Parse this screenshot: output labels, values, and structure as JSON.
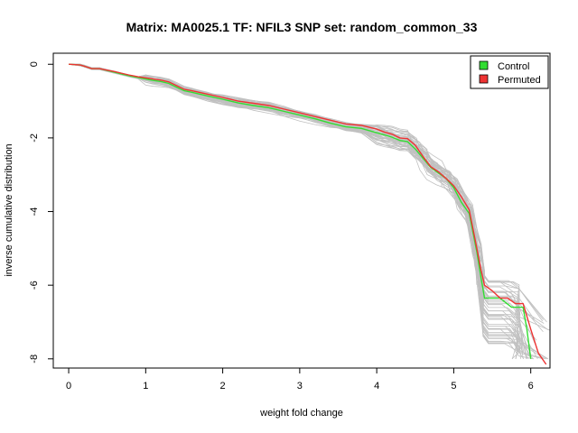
{
  "chart_data": {
    "type": "line",
    "title": "Matrix: MA0025.1 TF: NFIL3 SNP set: random_common_33",
    "xlabel": "weight fold change",
    "ylabel": "inverse cumulative distribution",
    "xlim": [
      -0.2,
      6.25
    ],
    "ylim": [
      -8.25,
      0.3
    ],
    "x_ticks": [
      0,
      1,
      2,
      3,
      4,
      5,
      6
    ],
    "y_ticks": [
      0,
      -2,
      -4,
      -6,
      -8
    ],
    "grid": false,
    "legend_position": "top-right",
    "colors": {
      "control": "#33dd33",
      "permuted": "#ee3333",
      "background": "#c0c0c0"
    },
    "legend": [
      {
        "label": "Control",
        "color": "#33dd33"
      },
      {
        "label": "Permuted",
        "color": "#ee3333"
      }
    ],
    "series": [
      {
        "name": "Control",
        "color": "#33dd33",
        "x": [
          0,
          0.15,
          0.2,
          0.3,
          0.4,
          0.5,
          0.6,
          0.7,
          0.8,
          0.9,
          1.0,
          1.1,
          1.2,
          1.3,
          1.4,
          1.5,
          1.6,
          1.8,
          2.0,
          2.2,
          2.4,
          2.6,
          2.8,
          3.0,
          3.2,
          3.4,
          3.6,
          3.8,
          4.0,
          4.1,
          4.2,
          4.3,
          4.4,
          4.5,
          4.6,
          4.7,
          4.8,
          4.9,
          5.0,
          5.1,
          5.2,
          5.3,
          5.35,
          5.4,
          5.6,
          5.75,
          5.9,
          5.95,
          6.0
        ],
        "y": [
          0,
          -0.02,
          -0.05,
          -0.12,
          -0.12,
          -0.17,
          -0.22,
          -0.27,
          -0.32,
          -0.36,
          -0.4,
          -0.44,
          -0.47,
          -0.52,
          -0.62,
          -0.72,
          -0.76,
          -0.86,
          -0.95,
          -1.05,
          -1.12,
          -1.18,
          -1.28,
          -1.38,
          -1.48,
          -1.6,
          -1.7,
          -1.74,
          -1.86,
          -1.92,
          -1.98,
          -2.07,
          -2.1,
          -2.3,
          -2.55,
          -2.8,
          -2.95,
          -3.1,
          -3.35,
          -3.75,
          -4.05,
          -5.1,
          -5.75,
          -6.35,
          -6.35,
          -6.6,
          -6.6,
          -7.2,
          -8.0
        ]
      },
      {
        "name": "Permuted",
        "color": "#ee3333",
        "x": [
          0,
          0.15,
          0.2,
          0.3,
          0.4,
          0.5,
          0.6,
          0.7,
          0.8,
          0.9,
          1.0,
          1.1,
          1.2,
          1.3,
          1.4,
          1.5,
          1.6,
          1.8,
          2.0,
          2.2,
          2.4,
          2.6,
          2.8,
          3.0,
          3.2,
          3.4,
          3.6,
          3.8,
          4.0,
          4.1,
          4.2,
          4.3,
          4.4,
          4.5,
          4.6,
          4.7,
          4.8,
          4.9,
          5.0,
          5.1,
          5.2,
          5.3,
          5.35,
          5.4,
          5.5,
          5.6,
          5.7,
          5.8,
          5.9,
          6.0,
          6.1,
          6.2
        ],
        "y": [
          0,
          -0.02,
          -0.05,
          -0.12,
          -0.12,
          -0.16,
          -0.2,
          -0.25,
          -0.3,
          -0.34,
          -0.37,
          -0.4,
          -0.43,
          -0.48,
          -0.58,
          -0.68,
          -0.72,
          -0.81,
          -0.9,
          -1.0,
          -1.06,
          -1.12,
          -1.22,
          -1.32,
          -1.42,
          -1.52,
          -1.62,
          -1.66,
          -1.76,
          -1.84,
          -1.9,
          -2.0,
          -2.02,
          -2.2,
          -2.5,
          -2.78,
          -2.92,
          -3.1,
          -3.3,
          -3.6,
          -3.95,
          -5.0,
          -5.55,
          -6.0,
          -6.15,
          -6.35,
          -6.35,
          -6.5,
          -6.5,
          -7.2,
          -7.85,
          -8.15
        ]
      }
    ]
  }
}
